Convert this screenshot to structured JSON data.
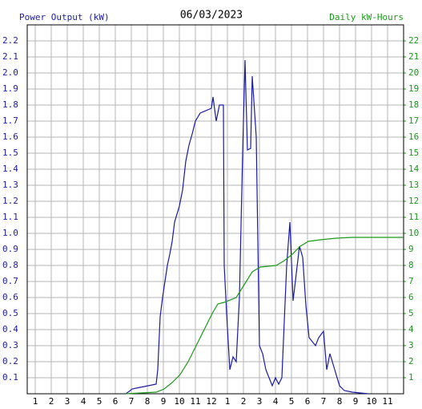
{
  "chart_data": {
    "type": "line",
    "title": "06/03/2023",
    "ylabel": "Power Output (kW)",
    "y2label": "Daily kW-Hours",
    "xlim": [
      0.5,
      24
    ],
    "xticks": [
      1,
      2,
      3,
      4,
      5,
      6,
      7,
      8,
      9,
      10,
      11,
      12,
      {
        "value": 13,
        "label": "1"
      },
      {
        "value": 14,
        "label": "2"
      },
      {
        "value": 15,
        "label": "3"
      },
      {
        "value": 16,
        "label": "4"
      },
      {
        "value": 17,
        "label": "5"
      },
      {
        "value": 18,
        "label": "6"
      },
      {
        "value": 19,
        "label": "7"
      },
      {
        "value": 20,
        "label": "8"
      },
      {
        "value": 21,
        "label": "9"
      },
      {
        "value": 22,
        "label": "10"
      },
      {
        "value": 23,
        "label": "11"
      }
    ],
    "ylim": [
      0,
      2.3
    ],
    "yticks": [
      0.1,
      0.2,
      0.3,
      0.4,
      0.5,
      0.6,
      0.7,
      0.8,
      0.9,
      {
        "value": 1,
        "label": "1.0"
      },
      1.1,
      1.2,
      1.3,
      1.4,
      1.5,
      1.6,
      1.7,
      1.8,
      1.9,
      {
        "value": 2,
        "label": "2.0"
      },
      2.1,
      2.2
    ],
    "y2lim": [
      0,
      23
    ],
    "y2ticks": [
      1,
      2,
      3,
      4,
      5,
      6,
      7,
      8,
      9,
      10,
      11,
      12,
      13,
      14,
      15,
      16,
      17,
      18,
      19,
      20,
      21,
      22
    ],
    "grid": true,
    "series": [
      {
        "name": "Power Output (kW)",
        "color": "#1a1aa6",
        "x": [
          6.65,
          6.8,
          7.05,
          7.55,
          8.05,
          8.55,
          8.65,
          8.8,
          8.95,
          9.1,
          9.25,
          9.4,
          9.55,
          9.7,
          10,
          10.2,
          10.4,
          10.6,
          10.8,
          11,
          11.3,
          12,
          12.1,
          12.3,
          12.5,
          12.75,
          12.8,
          12.95,
          13.15,
          13.35,
          13.55,
          13.75,
          13.95,
          14.1,
          14.25,
          14.45,
          14.55,
          14.8,
          15,
          15.2,
          15.4,
          15.6,
          15.8,
          16,
          16.2,
          16.4,
          16.55,
          16.7,
          16.9,
          17.1,
          17.3,
          17.5,
          17.7,
          17.9,
          18.1,
          18.5,
          18.7,
          19,
          19.2,
          19.4,
          19.7,
          20,
          20.3,
          20.8,
          21.8
        ],
        "values": [
          0,
          0.01,
          0.03,
          0.04,
          0.05,
          0.06,
          0.15,
          0.48,
          0.6,
          0.7,
          0.8,
          0.87,
          0.95,
          1.07,
          1.17,
          1.27,
          1.45,
          1.55,
          1.62,
          1.7,
          1.75,
          1.78,
          1.85,
          1.7,
          1.8,
          1.8,
          0.8,
          0.5,
          0.15,
          0.23,
          0.2,
          0.6,
          1.5,
          2.08,
          1.52,
          1.53,
          1.98,
          1.6,
          0.3,
          0.25,
          0.15,
          0.1,
          0.05,
          0.1,
          0.06,
          0.1,
          0.45,
          0.8,
          1.07,
          0.58,
          0.75,
          0.92,
          0.85,
          0.55,
          0.35,
          0.3,
          0.35,
          0.39,
          0.15,
          0.25,
          0.15,
          0.05,
          0.02,
          0.01,
          0
        ]
      },
      {
        "name": "Daily kW-Hours",
        "color": "#1a9a1a",
        "axis": "y2",
        "x": [
          6.65,
          8.55,
          9.05,
          9.55,
          10.05,
          10.55,
          11.05,
          11.55,
          12.05,
          12.4,
          12.8,
          13.55,
          14.05,
          14.55,
          15.05,
          16.05,
          16.55,
          17.05,
          17.55,
          18.05,
          18.8,
          19.8,
          20.8,
          24
        ],
        "values": [
          0,
          0.1,
          0.3,
          0.7,
          1.2,
          2,
          3,
          4,
          5,
          5.6,
          5.7,
          6,
          6.8,
          7.6,
          7.9,
          8,
          8.3,
          8.7,
          9.2,
          9.5,
          9.6,
          9.7,
          9.75,
          9.75
        ]
      }
    ]
  }
}
